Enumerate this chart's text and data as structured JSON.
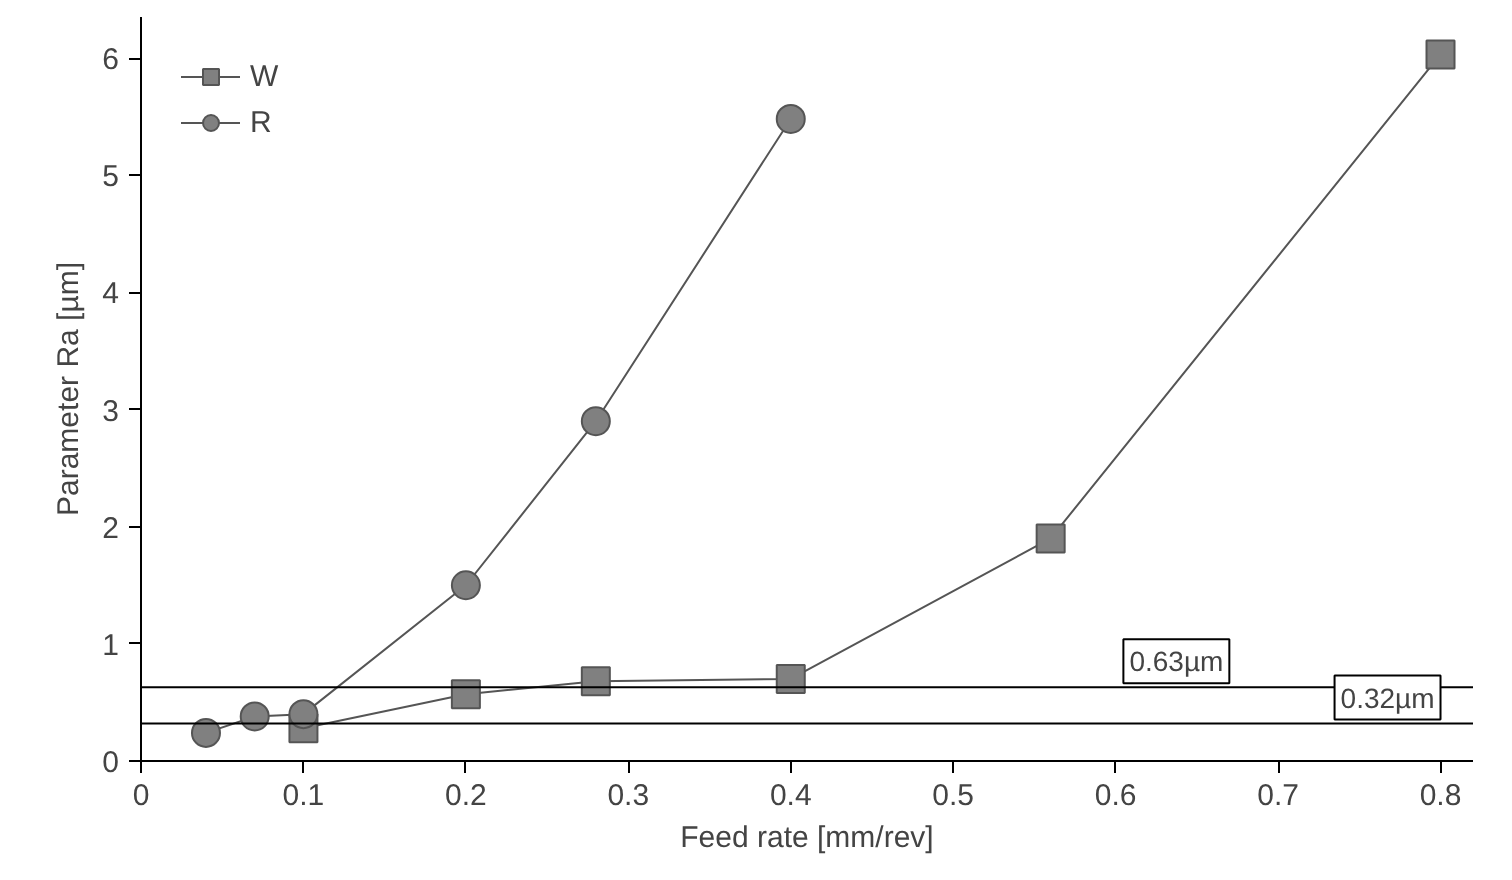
{
  "chart_data": {
    "type": "line",
    "xlabel": "Feed rate [mm/rev]",
    "ylabel": "Parameter Ra [µm]",
    "xlim": [
      0,
      0.82
    ],
    "ylim": [
      0,
      6.35
    ],
    "xticks": [
      0,
      0.1,
      0.2,
      0.3,
      0.4,
      0.5,
      0.6,
      0.7,
      0.8
    ],
    "yticks": [
      0,
      1,
      2,
      3,
      4,
      5,
      6
    ],
    "series": [
      {
        "name": "W",
        "color": "#808080",
        "marker": "square",
        "x": [
          0.1,
          0.2,
          0.28,
          0.4,
          0.56,
          0.8
        ],
        "values": [
          0.28,
          0.57,
          0.68,
          0.7,
          1.9,
          6.03
        ]
      },
      {
        "name": "R",
        "color": "#808080",
        "marker": "circle",
        "x": [
          0.04,
          0.07,
          0.1,
          0.2,
          0.28,
          0.4
        ],
        "values": [
          0.24,
          0.38,
          0.4,
          1.5,
          2.9,
          5.48
        ]
      }
    ],
    "ref_lines": [
      {
        "axis": "y",
        "value": 0.63,
        "label": "0.63µm"
      },
      {
        "axis": "y",
        "value": 0.32,
        "label": "0.32µm"
      }
    ],
    "grid": false,
    "legend": "top left"
  }
}
